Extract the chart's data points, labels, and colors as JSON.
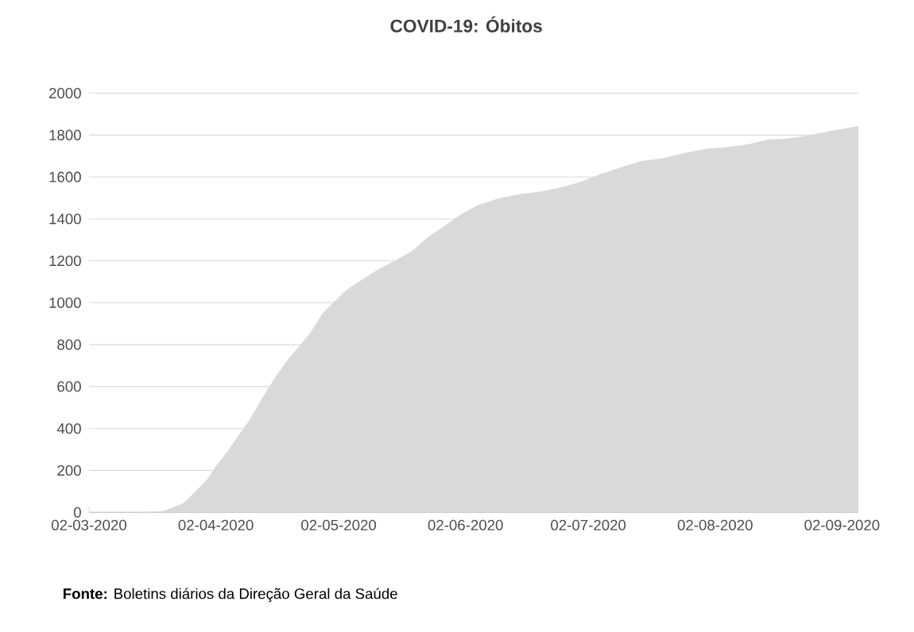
{
  "chart_data": {
    "type": "area",
    "title": "COVID-19: Óbitos",
    "annotations": [
      "**Fonte:** Boletins diários da Direção Geral da Saúde"
    ],
    "x": [
      "2020-03-02",
      "2020-03-16",
      "2020-03-20",
      "2020-03-25",
      "2020-03-28",
      "2020-03-31",
      "2020-04-02",
      "2020-04-05",
      "2020-04-08",
      "2020-04-10",
      "2020-04-13",
      "2020-04-16",
      "2020-04-19",
      "2020-04-22",
      "2020-04-25",
      "2020-04-28",
      "2020-05-01",
      "2020-05-04",
      "2020-05-08",
      "2020-05-12",
      "2020-05-16",
      "2020-05-20",
      "2020-05-24",
      "2020-05-28",
      "2020-06-01",
      "2020-06-05",
      "2020-06-10",
      "2020-06-15",
      "2020-06-20",
      "2020-06-25",
      "2020-06-30",
      "2020-07-05",
      "2020-07-10",
      "2020-07-15",
      "2020-07-20",
      "2020-07-25",
      "2020-07-31",
      "2020-08-05",
      "2020-08-10",
      "2020-08-15",
      "2020-08-20",
      "2020-08-25",
      "2020-08-31",
      "2020-09-06"
    ],
    "series": [
      {
        "color": "#d9d9d9",
        "values": [
          0,
          1,
          6,
          43,
          100,
          160,
          220,
          295,
          380,
          435,
          535,
          629,
          714,
          785,
          854,
          948,
          1007,
          1063,
          1114,
          1163,
          1203,
          1247,
          1316,
          1369,
          1424,
          1465,
          1497,
          1517,
          1530,
          1549,
          1576,
          1614,
          1646,
          1676,
          1689,
          1712,
          1735,
          1743,
          1756,
          1779,
          1784,
          1799,
          1822,
          1843
        ]
      }
    ],
    "xlim": [
      "2020-03-02",
      "2020-09-06"
    ],
    "xticks": [
      {
        "value": "2020-03-02",
        "label": "02-03-2020"
      },
      {
        "value": "2020-04-02",
        "label": "02-04-2020"
      },
      {
        "value": "2020-05-02",
        "label": "02-05-2020"
      },
      {
        "value": "2020-06-02",
        "label": "02-06-2020"
      },
      {
        "value": "2020-07-02",
        "label": "02-07-2020"
      },
      {
        "value": "2020-08-02",
        "label": "02-08-2020"
      },
      {
        "value": "2020-09-02",
        "label": "02-09-2020"
      }
    ],
    "ylim": [
      0,
      2000
    ],
    "yticks": [
      0,
      200,
      400,
      600,
      800,
      1000,
      1200,
      1400,
      1600,
      1800,
      2000
    ],
    "grid": "y"
  }
}
